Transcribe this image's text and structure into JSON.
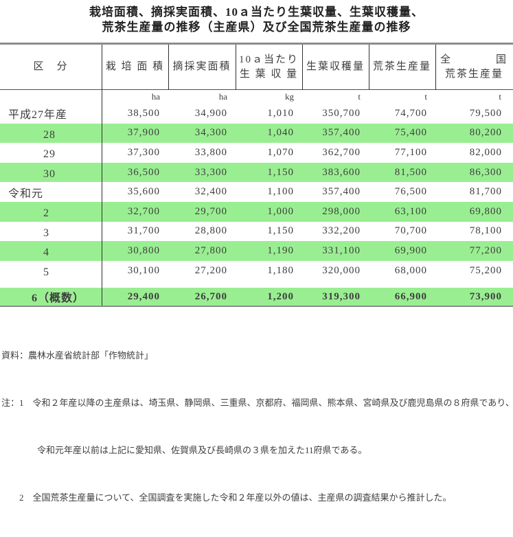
{
  "title": {
    "line1": "栽培面積、摘採実面積、10ａ当たり生葉収量、生葉収穫量、",
    "line2": "荒茶生産量の推移（主産県）及び全国荒茶生産量の推移"
  },
  "table": {
    "headers": {
      "kubun": "区　分",
      "saibai": "栽 培 面 積",
      "tekisai": "摘採実面積",
      "per10a_line1": "10ａ当たり",
      "per10a_line2": "生 葉 収 量",
      "namaha": "生葉収穫量",
      "aracha": "荒茶生産量",
      "zenkoku_line1_left": "全",
      "zenkoku_line1_right": "国",
      "zenkoku_line2": "荒茶生産量"
    },
    "units": [
      "ha",
      "ha",
      "kg",
      "t",
      "t",
      "t"
    ],
    "rows": [
      {
        "label": "平成27年産",
        "values": [
          "38,500",
          "34,900",
          "1,010",
          "350,700",
          "74,700",
          "79,500"
        ],
        "shaded": false,
        "bold": false,
        "gap_above": false
      },
      {
        "label": "　　　28",
        "values": [
          "37,900",
          "34,300",
          "1,040",
          "357,400",
          "75,400",
          "80,200"
        ],
        "shaded": true,
        "bold": false,
        "gap_above": false
      },
      {
        "label": "　　　29",
        "values": [
          "37,300",
          "33,800",
          "1,070",
          "362,700",
          "77,100",
          "82,000"
        ],
        "shaded": false,
        "bold": false,
        "gap_above": false
      },
      {
        "label": "　　　30",
        "values": [
          "36,500",
          "33,300",
          "1,150",
          "383,600",
          "81,500",
          "86,300"
        ],
        "shaded": true,
        "bold": false,
        "gap_above": false
      },
      {
        "label": "令和元",
        "values": [
          "35,600",
          "32,400",
          "1,100",
          "357,400",
          "76,500",
          "81,700"
        ],
        "shaded": false,
        "bold": false,
        "gap_above": false
      },
      {
        "label": "　　　2",
        "values": [
          "32,700",
          "29,700",
          "1,000",
          "298,000",
          "63,100",
          "69,800"
        ],
        "shaded": true,
        "bold": false,
        "gap_above": false
      },
      {
        "label": "　　　3",
        "values": [
          "31,700",
          "28,800",
          "1,150",
          "332,200",
          "70,700",
          "78,100"
        ],
        "shaded": false,
        "bold": false,
        "gap_above": false
      },
      {
        "label": "　　　4",
        "values": [
          "30,800",
          "27,800",
          "1,190",
          "331,100",
          "69,900",
          "77,200"
        ],
        "shaded": true,
        "bold": false,
        "gap_above": false
      },
      {
        "label": "　　　5",
        "values": [
          "30,100",
          "27,200",
          "1,180",
          "320,000",
          "68,000",
          "75,200"
        ],
        "shaded": false,
        "bold": false,
        "gap_above": false
      },
      {
        "label": "　　6（概数）",
        "values": [
          "29,400",
          "26,700",
          "1,200",
          "319,300",
          "66,900",
          "73,900"
        ],
        "shaded": true,
        "bold": true,
        "gap_above": true
      }
    ],
    "shaded_color": "#9aee92"
  },
  "notes": {
    "source": "資料：農林水産省統計部「作物統計」",
    "note1": "注：1　令和２年産以降の主産県は、埼玉県、静岡県、三重県、京都府、福岡県、熊本県、宮崎県及び鹿児島県の８府県であり、",
    "note1_cont": "　　　　令和元年産以前は上記に愛知県、佐賀県及び長崎県の３県を加えた11府県である。",
    "note2": "　　2　全国荒茶生産量について、全国調査を実施した令和２年産以外の値は、主産県の調査結果から推計した。"
  }
}
